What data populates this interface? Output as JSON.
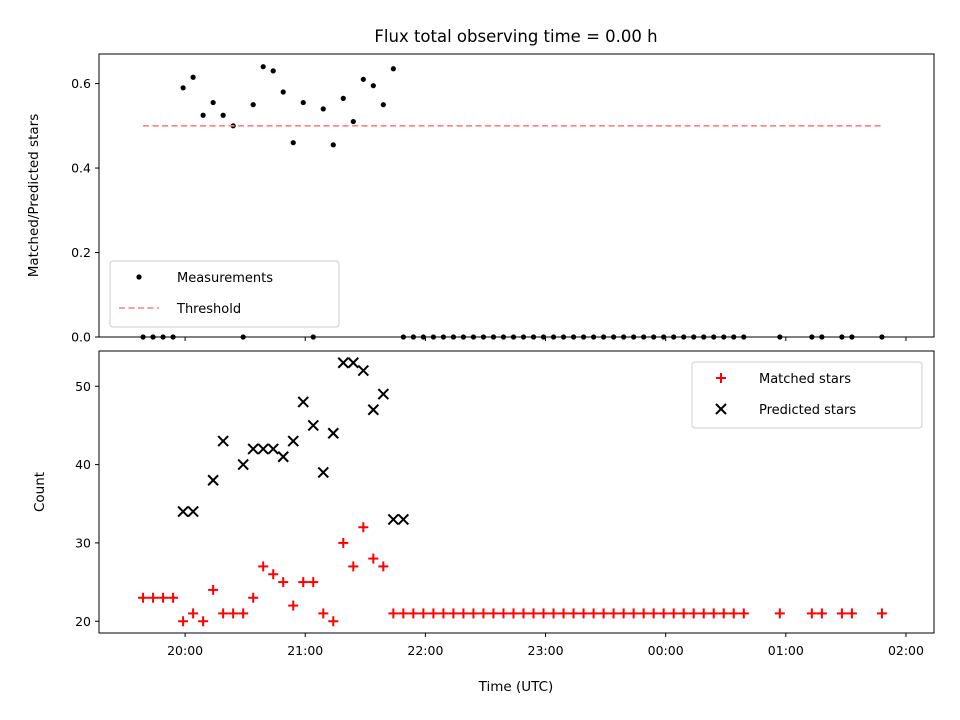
{
  "chart_data": {
    "title": "Flux total observing time = 0.00 h",
    "xlabel": "Time (UTC)",
    "x_tick_labels": [
      "20:00",
      "21:00",
      "22:00",
      "23:00",
      "00:00",
      "01:00",
      "02:00"
    ],
    "panels": [
      {
        "type": "scatter",
        "ylabel": "Matched/Predicted stars",
        "ylim": [
          0,
          0.67
        ],
        "y_ticks": [
          "0.0",
          "0.2",
          "0.4",
          "0.6"
        ],
        "legend_position": "lower-left",
        "series": [
          {
            "name": "Measurements",
            "marker": "dot",
            "color": "#000000",
            "x": [
              "19:39",
              "19:44",
              "19:49",
              "19:54",
              "19:59",
              "20:04",
              "20:09",
              "20:14",
              "20:19",
              "20:24",
              "20:29",
              "20:34",
              "20:39",
              "20:44",
              "20:49",
              "20:54",
              "20:59",
              "21:04",
              "21:09",
              "21:14",
              "21:19",
              "21:24",
              "21:29",
              "21:34",
              "21:39",
              "21:44",
              "21:49",
              "21:54",
              "21:59",
              "22:04",
              "22:09",
              "22:14",
              "22:19",
              "22:24",
              "22:29",
              "22:34",
              "22:39",
              "22:44",
              "22:49",
              "22:54",
              "22:59",
              "23:04",
              "23:09",
              "23:14",
              "23:19",
              "23:24",
              "23:29",
              "23:34",
              "23:39",
              "23:44",
              "23:49",
              "23:54",
              "23:59",
              "00:04",
              "00:09",
              "00:14",
              "00:19",
              "00:24",
              "00:29",
              "00:34",
              "00:39",
              "00:57",
              "01:13",
              "01:18",
              "01:28",
              "01:33",
              "01:48"
            ],
            "y": [
              0,
              0,
              0,
              0,
              0.59,
              0.615,
              0.525,
              0.555,
              0.525,
              0.5,
              0,
              0.55,
              0.64,
              0.63,
              0.58,
              0.46,
              0.555,
              0,
              0.54,
              0.455,
              0.565,
              0.51,
              0.61,
              0.595,
              0.55,
              0.635,
              0,
              0,
              0,
              0,
              0,
              0,
              0,
              0,
              0,
              0,
              0,
              0,
              0,
              0,
              0,
              0,
              0,
              0,
              0,
              0,
              0,
              0,
              0,
              0,
              0,
              0,
              0,
              0,
              0,
              0,
              0,
              0,
              0,
              0,
              0,
              0,
              0,
              0,
              0,
              0,
              0
            ],
            "x_note": "times shown on axis starting 19:39 on 1st night"
          },
          {
            "name": "Threshold",
            "line": "dashed",
            "color": "#ff7f7f",
            "x": [
              "19:39",
              "01:48"
            ],
            "y": [
              0.5,
              0.5
            ]
          }
        ]
      },
      {
        "type": "scatter",
        "ylabel": "Count",
        "ylim": [
          18.5,
          54.5
        ],
        "y_ticks": [
          "20",
          "30",
          "40",
          "50"
        ],
        "legend_position": "top-right",
        "series": [
          {
            "name": "Matched stars",
            "marker": "plus",
            "color": "#ff0000",
            "x": [
              "19:39",
              "19:44",
              "19:49",
              "19:54",
              "19:59",
              "20:04",
              "20:09",
              "20:14",
              "20:19",
              "20:24",
              "20:29",
              "20:34",
              "20:39",
              "20:44",
              "20:49",
              "20:54",
              "20:59",
              "21:04",
              "21:09",
              "21:14",
              "21:19",
              "21:24",
              "21:29",
              "21:34",
              "21:39",
              "21:44",
              "21:49",
              "21:54",
              "21:59",
              "22:04",
              "22:09",
              "22:14",
              "22:19",
              "22:24",
              "22:29",
              "22:34",
              "22:39",
              "22:44",
              "22:49",
              "22:54",
              "22:59",
              "23:04",
              "23:09",
              "23:14",
              "23:19",
              "23:24",
              "23:29",
              "23:34",
              "23:39",
              "23:44",
              "23:49",
              "23:54",
              "23:59",
              "00:04",
              "00:09",
              "00:14",
              "00:19",
              "00:24",
              "00:29",
              "00:34",
              "00:39",
              "00:57",
              "01:13",
              "01:18",
              "01:28",
              "01:33",
              "01:48"
            ],
            "y": [
              23,
              23,
              23,
              23,
              20,
              21,
              20,
              24,
              21,
              21,
              21,
              23,
              27,
              26,
              25,
              22,
              25,
              25,
              21,
              20,
              30,
              27,
              32,
              28,
              27,
              21,
              21,
              21,
              21,
              21,
              21,
              21,
              21,
              21,
              21,
              21,
              21,
              21,
              21,
              21,
              21,
              21,
              21,
              21,
              21,
              21,
              21,
              21,
              21,
              21,
              21,
              21,
              21,
              21,
              21,
              21,
              21,
              21,
              21,
              21,
              21,
              21,
              21,
              21,
              21,
              21,
              21
            ]
          },
          {
            "name": "Predicted stars",
            "marker": "x",
            "color": "#000000",
            "x": [
              "19:59",
              "20:04",
              "20:14",
              "20:19",
              "20:29",
              "20:34",
              "20:39",
              "20:44",
              "20:49",
              "20:54",
              "20:59",
              "21:04",
              "21:09",
              "21:14",
              "21:19",
              "21:24",
              "21:29",
              "21:34",
              "21:39",
              "21:44",
              "21:49"
            ],
            "y": [
              34,
              34,
              38,
              43,
              40,
              42,
              42,
              42,
              41,
              43,
              48,
              45,
              39,
              44,
              53,
              53,
              52,
              47,
              49,
              33,
              33
            ]
          }
        ]
      }
    ]
  }
}
